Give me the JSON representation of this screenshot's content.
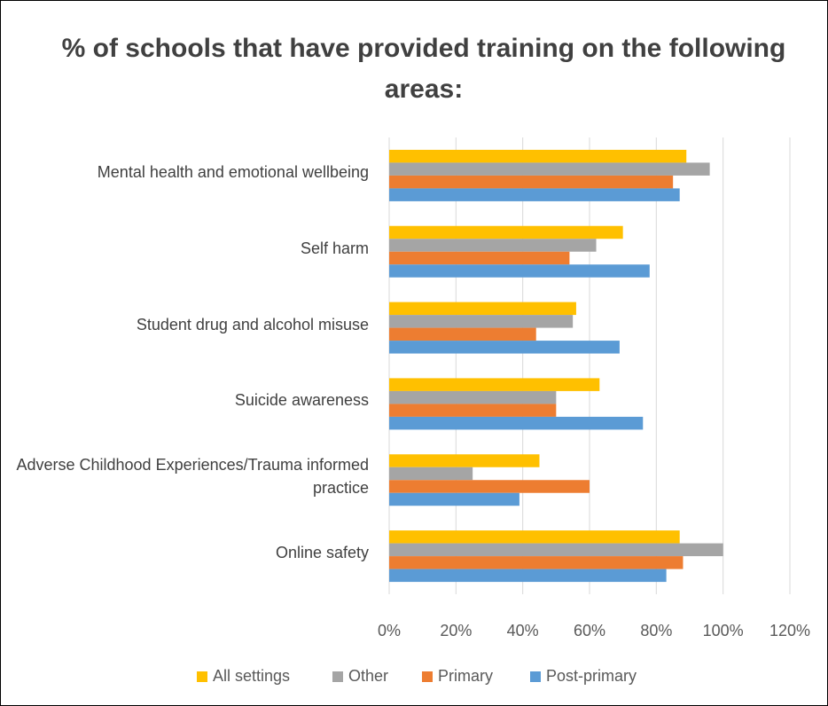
{
  "chart_data": {
    "type": "hbar",
    "title": "% of schools that have provided training on the following areas:",
    "categories": [
      "Mental health and emotional wellbeing",
      "Self harm",
      "Student drug and alcohol misuse",
      "Suicide awareness",
      "Adverse Childhood Experiences/Trauma informed practice",
      "Online safety"
    ],
    "series": [
      {
        "name": "All settings",
        "color": "#FFC000",
        "values": [
          89,
          70,
          56,
          63,
          45,
          87
        ]
      },
      {
        "name": "Other",
        "color": "#A5A5A5",
        "values": [
          96,
          62,
          55,
          50,
          25,
          100
        ]
      },
      {
        "name": "Primary",
        "color": "#ED7D31",
        "values": [
          85,
          54,
          44,
          50,
          60,
          88
        ]
      },
      {
        "name": "Post-primary",
        "color": "#5B9BD5",
        "values": [
          87,
          78,
          69,
          76,
          39,
          83
        ]
      }
    ],
    "xlim": [
      0,
      120
    ],
    "xticks": [
      {
        "value": 0,
        "label": "0%"
      },
      {
        "value": 20,
        "label": "20%"
      },
      {
        "value": 40,
        "label": "40%"
      },
      {
        "value": 60,
        "label": "60%"
      },
      {
        "value": 80,
        "label": "80%"
      },
      {
        "value": 100,
        "label": "100%"
      },
      {
        "value": 120,
        "label": "120%"
      }
    ],
    "grid": true,
    "legend": "bottom"
  }
}
